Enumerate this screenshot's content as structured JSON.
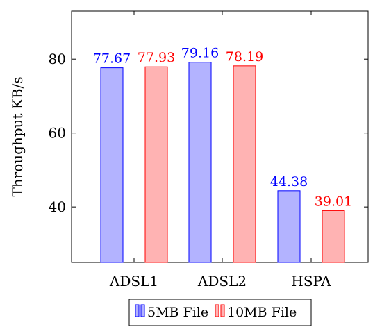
{
  "chart_data": {
    "type": "bar",
    "categories": [
      "ADSL1",
      "ADSL2",
      "HSPA"
    ],
    "series": [
      {
        "name": "5MB File",
        "values": [
          77.67,
          79.16,
          44.38
        ],
        "fill": "#b3b3ff",
        "stroke": "#0000ff",
        "label_color": "#0000ff"
      },
      {
        "name": "10MB File",
        "values": [
          77.93,
          78.19,
          39.01
        ],
        "fill": "#ffb3b3",
        "stroke": "#ff0000",
        "label_color": "#ff0000"
      }
    ],
    "title": "",
    "xlabel": "",
    "ylabel": "Throughput KB/s",
    "ylim": [
      25,
      93
    ],
    "yticks": [
      "40",
      "60",
      "80"
    ],
    "grid": false,
    "legend_position": "bottom-center"
  }
}
